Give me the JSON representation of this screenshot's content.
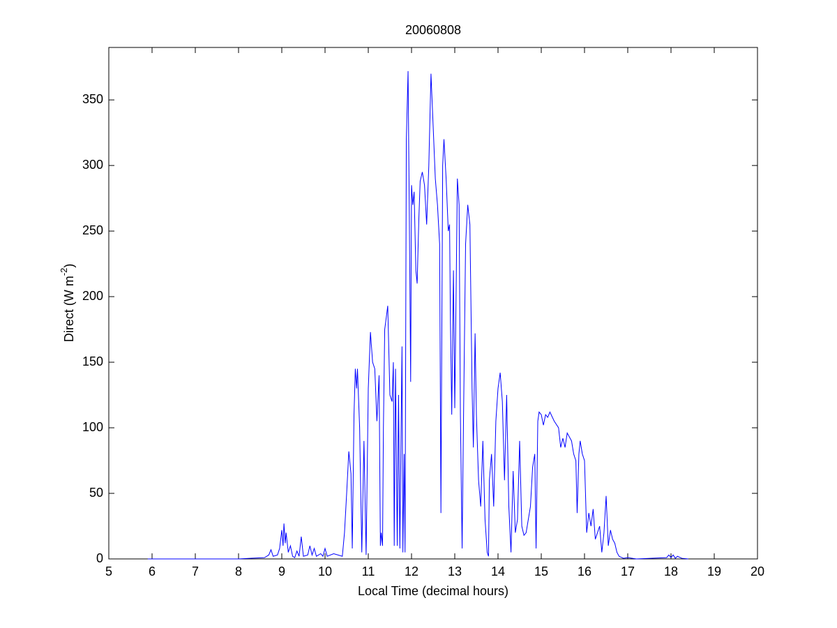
{
  "chart_data": {
    "type": "line",
    "title": "20060808",
    "xlabel": "Local Time (decimal hours)",
    "ylabel": [
      "Direct (W m",
      "-2",
      ")"
    ],
    "xlim": [
      5,
      20
    ],
    "xticks": [
      5,
      6,
      7,
      8,
      9,
      10,
      11,
      12,
      13,
      14,
      15,
      16,
      17,
      18,
      19,
      20
    ],
    "ylim": [
      0,
      390
    ],
    "yticks": [
      0,
      50,
      100,
      150,
      200,
      250,
      300,
      350
    ],
    "grid": false,
    "series": [
      {
        "color": "#0000ff",
        "x": [
          5.9,
          8.0,
          8.3,
          8.6,
          8.7,
          8.75,
          8.8,
          8.9,
          8.95,
          9.0,
          9.03,
          9.05,
          9.08,
          9.1,
          9.15,
          9.2,
          9.25,
          9.3,
          9.35,
          9.4,
          9.45,
          9.5,
          9.6,
          9.65,
          9.7,
          9.75,
          9.8,
          9.9,
          9.95,
          10.0,
          10.05,
          10.2,
          10.3,
          10.4,
          10.45,
          10.5,
          10.55,
          10.6,
          10.63,
          10.67,
          10.7,
          10.73,
          10.75,
          10.8,
          10.85,
          10.9,
          10.95,
          11.0,
          11.05,
          11.1,
          11.15,
          11.2,
          11.25,
          11.28,
          11.3,
          11.33,
          11.35,
          11.38,
          11.4,
          11.45,
          11.5,
          11.55,
          11.58,
          11.6,
          11.63,
          11.67,
          11.7,
          11.73,
          11.75,
          11.78,
          11.8,
          11.83,
          11.85,
          11.88,
          11.92,
          11.95,
          11.98,
          12.0,
          12.03,
          12.06,
          12.1,
          12.13,
          12.17,
          12.2,
          12.25,
          12.3,
          12.35,
          12.4,
          12.45,
          12.5,
          12.55,
          12.6,
          12.65,
          12.68,
          12.72,
          12.75,
          12.8,
          12.85,
          12.88,
          12.9,
          12.93,
          12.97,
          13.0,
          13.03,
          13.06,
          13.1,
          13.13,
          13.17,
          13.2,
          13.25,
          13.3,
          13.35,
          13.4,
          13.43,
          13.47,
          13.5,
          13.55,
          13.6,
          13.65,
          13.7,
          13.75,
          13.78,
          13.8,
          13.85,
          13.9,
          13.95,
          14.0,
          14.05,
          14.1,
          14.15,
          14.2,
          14.25,
          14.3,
          14.35,
          14.4,
          14.45,
          14.5,
          14.55,
          14.6,
          14.65,
          14.7,
          14.75,
          14.8,
          14.85,
          14.88,
          14.92,
          14.95,
          15.0,
          15.05,
          15.1,
          15.15,
          15.2,
          15.3,
          15.4,
          15.45,
          15.5,
          15.55,
          15.6,
          15.7,
          15.75,
          15.8,
          15.83,
          15.87,
          15.9,
          15.95,
          16.0,
          16.05,
          16.1,
          16.15,
          16.2,
          16.25,
          16.3,
          16.35,
          16.4,
          16.45,
          16.5,
          16.55,
          16.6,
          16.65,
          16.7,
          16.75,
          16.8,
          16.9,
          17.0,
          17.2,
          17.9,
          17.95,
          18.0,
          18.05,
          18.1,
          18.15,
          18.25,
          18.4
        ],
        "values": [
          0,
          0,
          0.5,
          1,
          3,
          7,
          2,
          3,
          8,
          22,
          10,
          27,
          12,
          20,
          5,
          10,
          2,
          1,
          6,
          2,
          17,
          2,
          3,
          10,
          3,
          8,
          2,
          4,
          2,
          8,
          2,
          4,
          3,
          2,
          20,
          50,
          82,
          65,
          8,
          110,
          145,
          130,
          145,
          100,
          5,
          90,
          3,
          130,
          173,
          150,
          145,
          105,
          140,
          10,
          20,
          10,
          100,
          175,
          180,
          193,
          125,
          120,
          150,
          10,
          145,
          10,
          125,
          8,
          70,
          162,
          5,
          80,
          5,
          320,
          372,
          260,
          135,
          285,
          270,
          280,
          220,
          210,
          260,
          288,
          295,
          285,
          255,
          300,
          370,
          330,
          290,
          270,
          240,
          35,
          300,
          320,
          290,
          250,
          255,
          180,
          110,
          220,
          115,
          200,
          290,
          270,
          110,
          8,
          100,
          240,
          270,
          255,
          130,
          85,
          172,
          110,
          60,
          40,
          90,
          30,
          5,
          2,
          60,
          80,
          40,
          105,
          130,
          142,
          120,
          60,
          125,
          40,
          5,
          67,
          20,
          30,
          90,
          25,
          18,
          20,
          30,
          40,
          70,
          80,
          8,
          105,
          112,
          110,
          102,
          110,
          108,
          112,
          105,
          100,
          85,
          92,
          85,
          96,
          90,
          80,
          75,
          35,
          80,
          90,
          80,
          75,
          20,
          35,
          25,
          38,
          15,
          20,
          25,
          5,
          20,
          48,
          10,
          22,
          15,
          12,
          5,
          2,
          0.5,
          1,
          0,
          1,
          3,
          1,
          3,
          0.5,
          2,
          0.5,
          0
        ]
      }
    ]
  }
}
